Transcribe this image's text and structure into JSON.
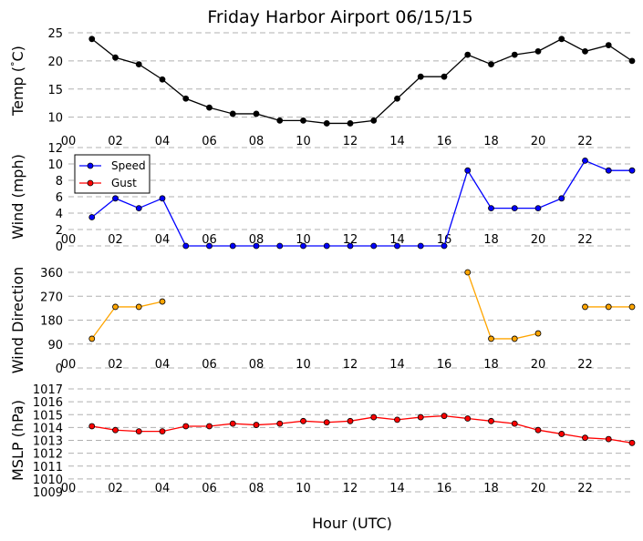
{
  "chart_data": [
    {
      "type": "line",
      "title": "Friday Harbor Airport 06/15/15",
      "ylabel": "Temp ($^\\circ$C)",
      "ylabel_text": "Temp (",
      "ylabel_deg": "°",
      "ylabel_unit": "C)",
      "xlim": [
        0,
        24
      ],
      "ylim": [
        8,
        25
      ],
      "yticks": [
        10,
        15,
        20,
        25
      ],
      "ytick_labels": [
        "10",
        "15",
        "20",
        "25"
      ],
      "xtick_labels": [
        "00",
        "02",
        "04",
        "06",
        "08",
        "10",
        "12",
        "14",
        "16",
        "18",
        "20",
        "22"
      ],
      "grid": "horizontal-dashed",
      "series": [
        {
          "color": "#000000",
          "x": [
            1,
            2,
            3,
            4,
            5,
            6,
            7,
            8,
            9,
            10,
            11,
            12,
            13,
            14,
            15,
            16,
            17,
            18,
            19,
            20,
            21,
            22,
            23,
            24
          ],
          "values": [
            23.9,
            20.6,
            19.4,
            16.7,
            13.3,
            11.7,
            10.6,
            10.6,
            9.4,
            9.4,
            8.9,
            8.9,
            9.4,
            13.3,
            17.2,
            17.2,
            21.1,
            19.4,
            21.1,
            21.7,
            23.9,
            21.7,
            22.8,
            20.0
          ]
        }
      ]
    },
    {
      "type": "line",
      "ylabel": "Wind (mph)",
      "xlim": [
        0,
        24
      ],
      "ylim": [
        0,
        12
      ],
      "yticks": [
        0,
        2,
        4,
        6,
        8,
        10,
        12
      ],
      "ytick_labels": [
        "0",
        "2",
        "4",
        "6",
        "8",
        "10",
        "12"
      ],
      "xtick_labels": [
        "00",
        "02",
        "04",
        "06",
        "08",
        "10",
        "12",
        "14",
        "16",
        "18",
        "20",
        "22"
      ],
      "grid": "horizontal-dashed",
      "legend": "top-left",
      "series": [
        {
          "name": "Speed",
          "color": "#0000ff",
          "x": [
            1,
            2,
            3,
            4,
            5,
            6,
            7,
            8,
            9,
            10,
            11,
            12,
            13,
            14,
            15,
            16,
            17,
            18,
            19,
            20,
            21,
            22,
            23,
            24
          ],
          "values": [
            3.5,
            5.8,
            4.6,
            5.8,
            0,
            0,
            0,
            0,
            0,
            0,
            0,
            0,
            0,
            0,
            0,
            0,
            9.2,
            4.6,
            4.6,
            4.6,
            5.8,
            10.4,
            9.2,
            9.2
          ]
        },
        {
          "name": "Gust",
          "color": "#ff0000",
          "x": [],
          "values": []
        }
      ]
    },
    {
      "type": "line",
      "ylabel": "Wind Direction",
      "xlim": [
        0,
        24
      ],
      "ylim": [
        0,
        360
      ],
      "yticks": [
        0,
        90,
        180,
        270,
        360
      ],
      "ytick_labels": [
        "0",
        "90",
        "180",
        "270",
        "360"
      ],
      "xtick_labels": [
        "00",
        "02",
        "04",
        "06",
        "08",
        "10",
        "12",
        "14",
        "16",
        "18",
        "20",
        "22"
      ],
      "grid": "horizontal-dashed",
      "series": [
        {
          "color": "#ffa500",
          "x": [
            1,
            2,
            3,
            4,
            5,
            6,
            7,
            8,
            9,
            10,
            11,
            12,
            13,
            14,
            15,
            16,
            17,
            18,
            19,
            20,
            21,
            22,
            23,
            24
          ],
          "values": [
            110,
            230,
            230,
            250,
            null,
            null,
            null,
            null,
            null,
            null,
            null,
            null,
            null,
            null,
            null,
            null,
            360,
            110,
            110,
            130,
            null,
            230,
            230,
            230
          ]
        }
      ]
    },
    {
      "type": "line",
      "ylabel": "MSLP (hPa)",
      "xlabel": "Hour (UTC)",
      "xlim": [
        0,
        24
      ],
      "ylim": [
        1009,
        1017
      ],
      "yticks": [
        1009,
        1010,
        1011,
        1012,
        1013,
        1014,
        1015,
        1016,
        1017
      ],
      "ytick_labels": [
        "1009",
        "1010",
        "1011",
        "1012",
        "1013",
        "1014",
        "1015",
        "1016",
        "1017"
      ],
      "xtick_labels": [
        "00",
        "02",
        "04",
        "06",
        "08",
        "10",
        "12",
        "14",
        "16",
        "18",
        "20",
        "22"
      ],
      "grid": "horizontal-dashed",
      "series": [
        {
          "color": "#ff0000",
          "x": [
            1,
            2,
            3,
            4,
            5,
            6,
            7,
            8,
            9,
            10,
            11,
            12,
            13,
            14,
            15,
            16,
            17,
            18,
            19,
            20,
            21,
            22,
            23,
            24
          ],
          "values": [
            1014.1,
            1013.8,
            1013.7,
            1013.7,
            1014.1,
            1014.1,
            1014.3,
            1014.2,
            1014.3,
            1014.5,
            1014.4,
            1014.5,
            1014.8,
            1014.6,
            1014.8,
            1014.9,
            1014.7,
            1014.5,
            1014.3,
            1013.8,
            1013.5,
            1013.2,
            1013.1,
            1012.8
          ]
        }
      ]
    }
  ]
}
